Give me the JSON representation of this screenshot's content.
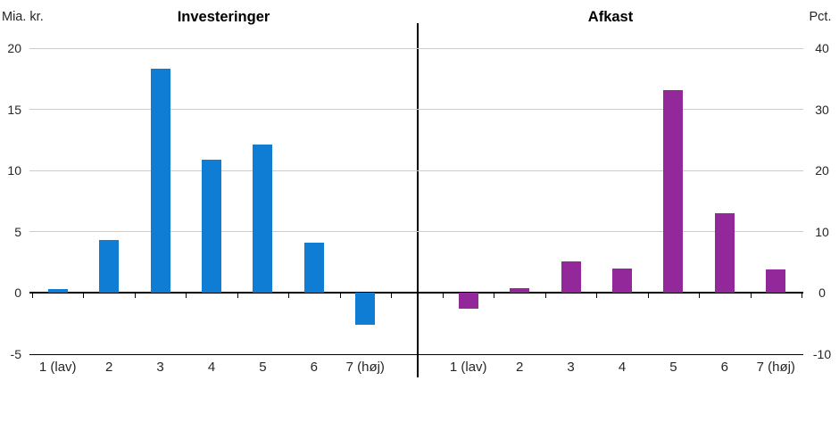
{
  "chart_data": [
    {
      "type": "bar",
      "title": "Investeringer",
      "ylabel": "Mia. kr.",
      "categories": [
        "1 (lav)",
        "2",
        "3",
        "4",
        "5",
        "6",
        "7 (høj)"
      ],
      "values": [
        0.3,
        4.3,
        18.3,
        10.9,
        12.1,
        4.1,
        -2.6
      ],
      "ylim": [
        -5,
        20
      ],
      "yticks": [
        20,
        15,
        10,
        5,
        0,
        -5
      ],
      "bar_color": "#0e7dd3",
      "grid": true,
      "legend": "none"
    },
    {
      "type": "bar",
      "title": "Afkast",
      "ylabel": "Pct.",
      "categories": [
        "1 (lav)",
        "2",
        "3",
        "4",
        "5",
        "6",
        "7 (høj)"
      ],
      "values": [
        -2.5,
        0.8,
        5.1,
        4.0,
        33.2,
        13.0,
        3.9
      ],
      "ylim": [
        -10,
        40
      ],
      "yticks": [
        40,
        30,
        20,
        10,
        0,
        -10
      ],
      "bar_color": "#93289a",
      "grid": true,
      "legend": "none"
    }
  ],
  "colors": {
    "gridline": "#cccccc",
    "axis": "#000000",
    "text": "#262626"
  }
}
